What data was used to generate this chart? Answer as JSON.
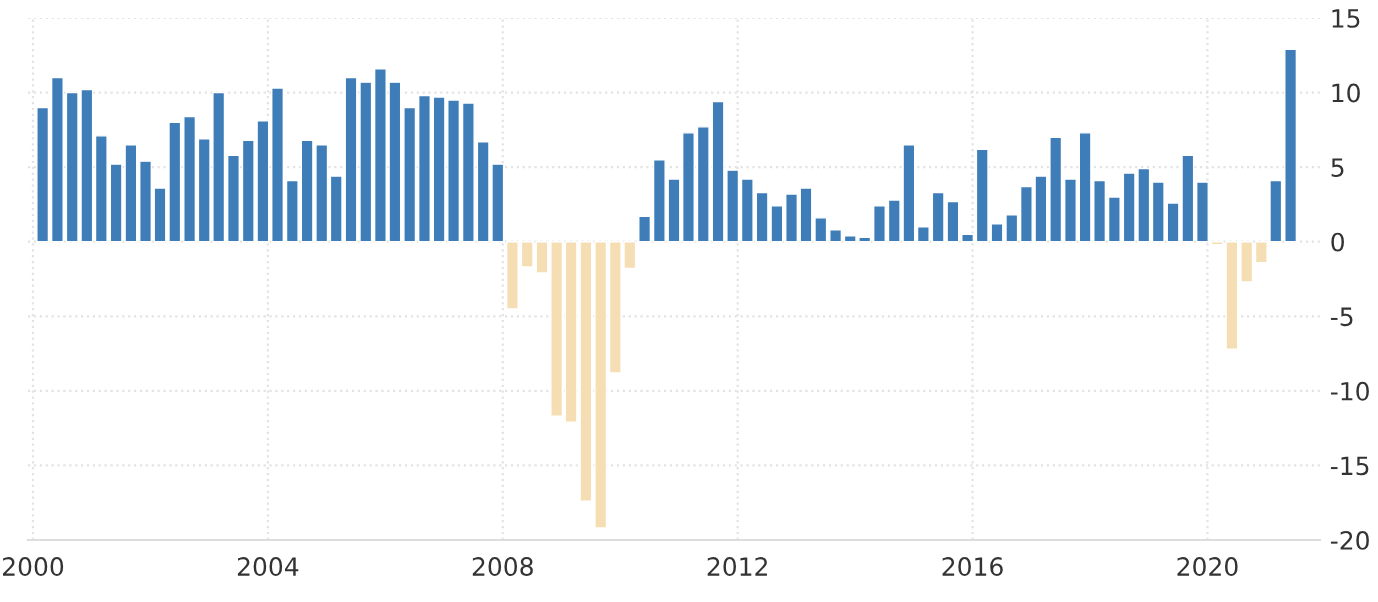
{
  "chart_data": {
    "type": "bar",
    "x": [
      "2000-03",
      "2000-06",
      "2000-09",
      "2000-12",
      "2001-03",
      "2001-06",
      "2001-09",
      "2001-12",
      "2002-03",
      "2002-06",
      "2002-09",
      "2002-12",
      "2003-03",
      "2003-06",
      "2003-09",
      "2003-12",
      "2004-03",
      "2004-06",
      "2004-09",
      "2004-12",
      "2005-03",
      "2005-06",
      "2005-09",
      "2005-12",
      "2006-03",
      "2006-06",
      "2006-09",
      "2006-12",
      "2007-03",
      "2007-06",
      "2007-09",
      "2007-12",
      "2008-03",
      "2008-06",
      "2008-09",
      "2008-12",
      "2009-03",
      "2009-06",
      "2009-09",
      "2009-12",
      "2010-03",
      "2010-06",
      "2010-09",
      "2010-12",
      "2011-03",
      "2011-06",
      "2011-09",
      "2011-12",
      "2012-03",
      "2012-06",
      "2012-09",
      "2012-12",
      "2013-03",
      "2013-06",
      "2013-09",
      "2013-12",
      "2014-03",
      "2014-06",
      "2014-09",
      "2014-12",
      "2015-03",
      "2015-06",
      "2015-09",
      "2015-12",
      "2016-03",
      "2016-06",
      "2016-09",
      "2016-12",
      "2017-03",
      "2017-06",
      "2017-09",
      "2017-12",
      "2018-03",
      "2018-06",
      "2018-09",
      "2018-12",
      "2019-03",
      "2019-06",
      "2019-09",
      "2019-12",
      "2020-03",
      "2020-06",
      "2020-09",
      "2020-12",
      "2021-03",
      "2021-06"
    ],
    "values": [
      9.0,
      11.0,
      10.0,
      10.2,
      7.1,
      5.2,
      6.5,
      5.4,
      3.6,
      8.0,
      8.4,
      6.9,
      10.0,
      5.8,
      6.8,
      8.1,
      10.3,
      4.1,
      6.8,
      6.5,
      4.4,
      11.0,
      10.7,
      11.6,
      10.7,
      9.0,
      9.8,
      9.7,
      9.5,
      9.3,
      6.7,
      5.2,
      -4.5,
      -1.7,
      -2.1,
      -11.7,
      -12.1,
      -17.4,
      -19.2,
      -8.8,
      -1.8,
      1.7,
      5.5,
      4.2,
      7.3,
      7.7,
      9.4,
      4.8,
      4.2,
      3.3,
      2.4,
      3.2,
      3.6,
      1.6,
      0.8,
      0.4,
      0.3,
      2.4,
      2.8,
      6.5,
      1.0,
      3.3,
      2.7,
      0.5,
      6.2,
      1.2,
      1.8,
      3.7,
      4.4,
      7.0,
      4.2,
      7.3,
      4.1,
      3.0,
      4.6,
      4.9,
      4.0,
      2.6,
      5.8,
      4.0,
      -0.2,
      -7.2,
      -2.7,
      -1.4,
      4.1,
      12.9
    ],
    "colors": [
      "#3e7db8",
      "#3e7db8",
      "#3e7db8",
      "#3e7db8",
      "#3e7db8",
      "#3e7db8",
      "#3e7db8",
      "#3e7db8",
      "#3e7db8",
      "#3e7db8",
      "#3e7db8",
      "#3e7db8",
      "#3e7db8",
      "#3e7db8",
      "#3e7db8",
      "#3e7db8",
      "#3e7db8",
      "#3e7db8",
      "#3e7db8",
      "#3e7db8",
      "#3e7db8",
      "#3e7db8",
      "#3e7db8",
      "#3e7db8",
      "#3e7db8",
      "#3e7db8",
      "#3e7db8",
      "#3e7db8",
      "#3e7db8",
      "#3e7db8",
      "#3e7db8",
      "#3e7db8",
      "#f5deb3",
      "#f5deb3",
      "#f5deb3",
      "#f5deb3",
      "#f5deb3",
      "#f5deb3",
      "#f5deb3",
      "#f5deb3",
      "#f5deb3",
      "#3e7db8",
      "#3e7db8",
      "#3e7db8",
      "#3e7db8",
      "#3e7db8",
      "#3e7db8",
      "#3e7db8",
      "#3e7db8",
      "#3e7db8",
      "#3e7db8",
      "#3e7db8",
      "#3e7db8",
      "#3e7db8",
      "#3e7db8",
      "#3e7db8",
      "#3e7db8",
      "#3e7db8",
      "#3e7db8",
      "#3e7db8",
      "#3e7db8",
      "#3e7db8",
      "#3e7db8",
      "#3e7db8",
      "#3e7db8",
      "#3e7db8",
      "#3e7db8",
      "#3e7db8",
      "#3e7db8",
      "#3e7db8",
      "#3e7db8",
      "#3e7db8",
      "#3e7db8",
      "#3e7db8",
      "#3e7db8",
      "#3e7db8",
      "#3e7db8",
      "#3e7db8",
      "#3e7db8",
      "#3e7db8",
      "#f5deb3",
      "#f5deb3",
      "#f5deb3",
      "#f5deb3",
      "#3e7db8",
      "#3e7db8"
    ],
    "xlim": [
      "1999-12-01",
      "2021-12-01"
    ],
    "xticks": [
      "2000",
      "2004",
      "2008",
      "2012",
      "2016",
      "2020"
    ],
    "ylim": [
      -20,
      15
    ],
    "yticks": [
      -20,
      -15,
      -10,
      -5,
      0,
      5,
      10,
      15
    ],
    "grid": true,
    "legend": false
  }
}
